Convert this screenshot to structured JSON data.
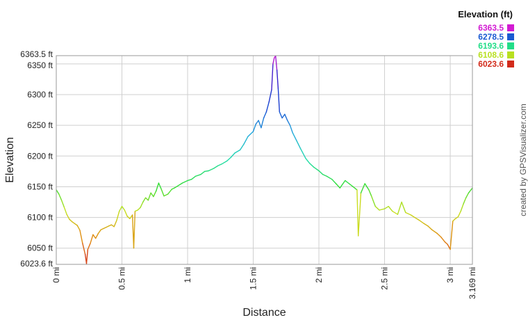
{
  "chart_data": {
    "type": "line",
    "title": "",
    "xlabel": "Distance",
    "ylabel": "Elevation",
    "xlim": [
      0,
      3.169
    ],
    "ylim": [
      6023.6,
      6363.5
    ],
    "grid": true,
    "x_ticks": [
      {
        "value": 0,
        "label": "0 mi"
      },
      {
        "value": 0.5,
        "label": "0.5 mi"
      },
      {
        "value": 1,
        "label": "1 mi"
      },
      {
        "value": 1.5,
        "label": "1.5 mi"
      },
      {
        "value": 2,
        "label": "2 mi"
      },
      {
        "value": 2.5,
        "label": "2.5 mi"
      },
      {
        "value": 3,
        "label": "3 mi"
      },
      {
        "value": 3.169,
        "label": "3.169 mi"
      }
    ],
    "y_ticks": [
      {
        "value": 6023.6,
        "label": "6023.6 ft"
      },
      {
        "value": 6050,
        "label": "6050 ft"
      },
      {
        "value": 6100,
        "label": "6100 ft"
      },
      {
        "value": 6150,
        "label": "6150 ft"
      },
      {
        "value": 6200,
        "label": "6200 ft"
      },
      {
        "value": 6250,
        "label": "6250 ft"
      },
      {
        "value": 6300,
        "label": "6300 ft"
      },
      {
        "value": 6350,
        "label": "6350 ft"
      },
      {
        "value": 6363.5,
        "label": "6363.5 ft"
      }
    ],
    "legend": {
      "title": "Elevation (ft)",
      "placement": "top-right",
      "entries": [
        {
          "label": "6363.5",
          "color": "#d21ad2"
        },
        {
          "label": "6278.5",
          "color": "#1a5ad2"
        },
        {
          "label": "6193.6",
          "color": "#22dd88"
        },
        {
          "label": "6108.6",
          "color": "#b8e020"
        },
        {
          "label": "6023.6",
          "color": "#d22a1a"
        }
      ]
    },
    "color_scale": {
      "stops": [
        {
          "value": 6023.6,
          "color": "#d22a1a"
        },
        {
          "value": 6066,
          "color": "#e08a10"
        },
        {
          "value": 6108.6,
          "color": "#c8e020"
        },
        {
          "value": 6150,
          "color": "#33dd33"
        },
        {
          "value": 6193.6,
          "color": "#22ddaa"
        },
        {
          "value": 6236,
          "color": "#22aadd"
        },
        {
          "value": 6278.5,
          "color": "#1a4ad2"
        },
        {
          "value": 6320,
          "color": "#2222cc"
        },
        {
          "value": 6363.5,
          "color": "#d21ad2"
        }
      ]
    },
    "series": [
      {
        "x": [
          0.0,
          0.02,
          0.04,
          0.06,
          0.08,
          0.1,
          0.12,
          0.14,
          0.16,
          0.18,
          0.2,
          0.22,
          0.23,
          0.24,
          0.26,
          0.28,
          0.3,
          0.32,
          0.34,
          0.36,
          0.38,
          0.4,
          0.42,
          0.44,
          0.46,
          0.48,
          0.5,
          0.52,
          0.54,
          0.56,
          0.58,
          0.59,
          0.6,
          0.62,
          0.64,
          0.66,
          0.68,
          0.7,
          0.72,
          0.74,
          0.76,
          0.78,
          0.8,
          0.82,
          0.85,
          0.88,
          0.9,
          0.93,
          0.96,
          1.0,
          1.03,
          1.06,
          1.1,
          1.13,
          1.16,
          1.2,
          1.23,
          1.26,
          1.3,
          1.33,
          1.36,
          1.4,
          1.43,
          1.46,
          1.5,
          1.52,
          1.54,
          1.56,
          1.58,
          1.6,
          1.62,
          1.64,
          1.65,
          1.66,
          1.67,
          1.68,
          1.69,
          1.7,
          1.72,
          1.74,
          1.76,
          1.78,
          1.8,
          1.83,
          1.86,
          1.9,
          1.93,
          1.96,
          2.0,
          2.03,
          2.06,
          2.1,
          2.13,
          2.16,
          2.2,
          2.23,
          2.26,
          2.29,
          2.3,
          2.32,
          2.35,
          2.38,
          2.4,
          2.43,
          2.46,
          2.5,
          2.53,
          2.56,
          2.6,
          2.63,
          2.66,
          2.7,
          2.73,
          2.76,
          2.8,
          2.83,
          2.86,
          2.9,
          2.93,
          2.96,
          2.98,
          3.0,
          3.02,
          3.04,
          3.06,
          3.08,
          3.1,
          3.12,
          3.14,
          3.169
        ],
        "y": [
          6145,
          6138,
          6128,
          6117,
          6105,
          6097,
          6093,
          6090,
          6087,
          6079,
          6058,
          6040,
          6025,
          6048,
          6058,
          6072,
          6066,
          6074,
          6080,
          6082,
          6084,
          6086,
          6088,
          6085,
          6095,
          6110,
          6118,
          6112,
          6102,
          6098,
          6104,
          6050,
          6110,
          6112,
          6116,
          6125,
          6132,
          6128,
          6140,
          6134,
          6143,
          6156,
          6146,
          6135,
          6138,
          6146,
          6148,
          6152,
          6156,
          6160,
          6162,
          6167,
          6170,
          6175,
          6176,
          6180,
          6184,
          6187,
          6192,
          6198,
          6205,
          6210,
          6220,
          6232,
          6240,
          6252,
          6258,
          6246,
          6262,
          6272,
          6288,
          6308,
          6350,
          6360,
          6363,
          6340,
          6310,
          6272,
          6262,
          6268,
          6258,
          6250,
          6238,
          6225,
          6212,
          6196,
          6188,
          6182,
          6176,
          6170,
          6167,
          6162,
          6155,
          6148,
          6160,
          6155,
          6150,
          6145,
          6070,
          6140,
          6155,
          6145,
          6135,
          6118,
          6112,
          6114,
          6118,
          6110,
          6105,
          6125,
          6108,
          6104,
          6100,
          6096,
          6090,
          6086,
          6080,
          6074,
          6068,
          6060,
          6056,
          6048,
          6094,
          6098,
          6101,
          6110,
          6122,
          6132,
          6140,
          6148
        ]
      }
    ]
  },
  "credit": "created by GPSVisualizer.com"
}
